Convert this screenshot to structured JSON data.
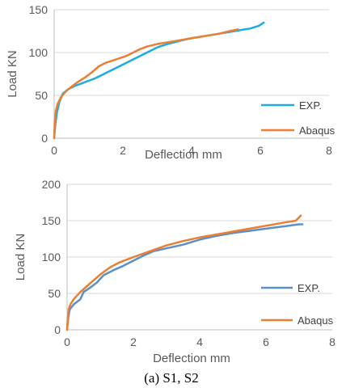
{
  "caption": "(a) S1, S2",
  "chart_data": [
    {
      "type": "line",
      "xlabel": "Deflection mm",
      "ylabel": "Load KN",
      "xlim": [
        0,
        8
      ],
      "ylim": [
        0,
        150
      ],
      "xticks": [
        0,
        2,
        4,
        6,
        8
      ],
      "yticks": [
        0,
        50,
        100,
        150
      ],
      "grid": "horizontal",
      "legend_position": "bottom-right",
      "series": [
        {
          "name": "EXP.",
          "color": "#1aace2",
          "points": [
            [
              0,
              0
            ],
            [
              0.03,
              15
            ],
            [
              0.08,
              30
            ],
            [
              0.15,
              42
            ],
            [
              0.25,
              52
            ],
            [
              0.4,
              57
            ],
            [
              0.6,
              61
            ],
            [
              0.8,
              64
            ],
            [
              1.0,
              67
            ],
            [
              1.2,
              70
            ],
            [
              1.5,
              76
            ],
            [
              1.8,
              82
            ],
            [
              2.1,
              88
            ],
            [
              2.4,
              94
            ],
            [
              2.7,
              100
            ],
            [
              3.0,
              106
            ],
            [
              3.3,
              110
            ],
            [
              3.6,
              113
            ],
            [
              3.9,
              116
            ],
            [
              4.2,
              118
            ],
            [
              4.5,
              120
            ],
            [
              4.8,
              122
            ],
            [
              5.1,
              124
            ],
            [
              5.4,
              126
            ],
            [
              5.7,
              128
            ],
            [
              5.95,
              131
            ],
            [
              6.1,
              135
            ]
          ]
        },
        {
          "name": "Abaqus",
          "color": "#ed7d31",
          "points": [
            [
              0,
              0
            ],
            [
              0.02,
              20
            ],
            [
              0.05,
              32
            ],
            [
              0.1,
              40
            ],
            [
              0.2,
              48
            ],
            [
              0.35,
              55
            ],
            [
              0.5,
              60
            ],
            [
              0.7,
              66
            ],
            [
              0.9,
              71
            ],
            [
              1.1,
              77
            ],
            [
              1.3,
              84
            ],
            [
              1.5,
              88
            ],
            [
              1.8,
              92
            ],
            [
              2.1,
              96
            ],
            [
              2.3,
              100
            ],
            [
              2.5,
              104
            ],
            [
              2.7,
              107
            ],
            [
              3.0,
              110
            ],
            [
              3.3,
              112
            ],
            [
              3.6,
              114
            ],
            [
              3.9,
              116
            ],
            [
              4.2,
              118
            ],
            [
              4.5,
              120
            ],
            [
              4.8,
              122
            ],
            [
              5.1,
              125
            ],
            [
              5.35,
              127
            ]
          ]
        }
      ]
    },
    {
      "type": "line",
      "xlabel": "Deflection mm",
      "ylabel": "Load KN",
      "xlim": [
        0,
        8
      ],
      "ylim": [
        0,
        200
      ],
      "xticks": [
        0,
        2,
        4,
        6,
        8
      ],
      "yticks": [
        0,
        50,
        100,
        150,
        200
      ],
      "grid": "horizontal",
      "legend_position": "right",
      "series": [
        {
          "name": "EXP.",
          "color": "#5b8fc9",
          "points": [
            [
              0,
              0
            ],
            [
              0.03,
              15
            ],
            [
              0.08,
              28
            ],
            [
              0.2,
              35
            ],
            [
              0.4,
              42
            ],
            [
              0.5,
              52
            ],
            [
              0.7,
              58
            ],
            [
              0.9,
              65
            ],
            [
              1.1,
              75
            ],
            [
              1.4,
              82
            ],
            [
              1.7,
              88
            ],
            [
              2.0,
              95
            ],
            [
              2.3,
              102
            ],
            [
              2.6,
              108
            ],
            [
              3.0,
              112
            ],
            [
              3.5,
              117
            ],
            [
              4.0,
              124
            ],
            [
              4.5,
              129
            ],
            [
              5.0,
              133
            ],
            [
              5.5,
              136
            ],
            [
              6.0,
              139
            ],
            [
              6.5,
              142
            ],
            [
              7.0,
              145
            ],
            [
              7.1,
              145
            ]
          ]
        },
        {
          "name": "Abaqus",
          "color": "#ed7d31",
          "points": [
            [
              0,
              0
            ],
            [
              0.02,
              15
            ],
            [
              0.05,
              28
            ],
            [
              0.1,
              35
            ],
            [
              0.2,
              42
            ],
            [
              0.4,
              52
            ],
            [
              0.6,
              60
            ],
            [
              0.8,
              68
            ],
            [
              1.0,
              76
            ],
            [
              1.3,
              86
            ],
            [
              1.6,
              93
            ],
            [
              2.0,
              100
            ],
            [
              2.5,
              108
            ],
            [
              3.0,
              116
            ],
            [
              3.5,
              122
            ],
            [
              4.0,
              127
            ],
            [
              4.5,
              131
            ],
            [
              5.0,
              135
            ],
            [
              5.5,
              139
            ],
            [
              6.0,
              143
            ],
            [
              6.5,
              147
            ],
            [
              6.9,
              150
            ],
            [
              7.05,
              157
            ]
          ]
        }
      ]
    }
  ]
}
